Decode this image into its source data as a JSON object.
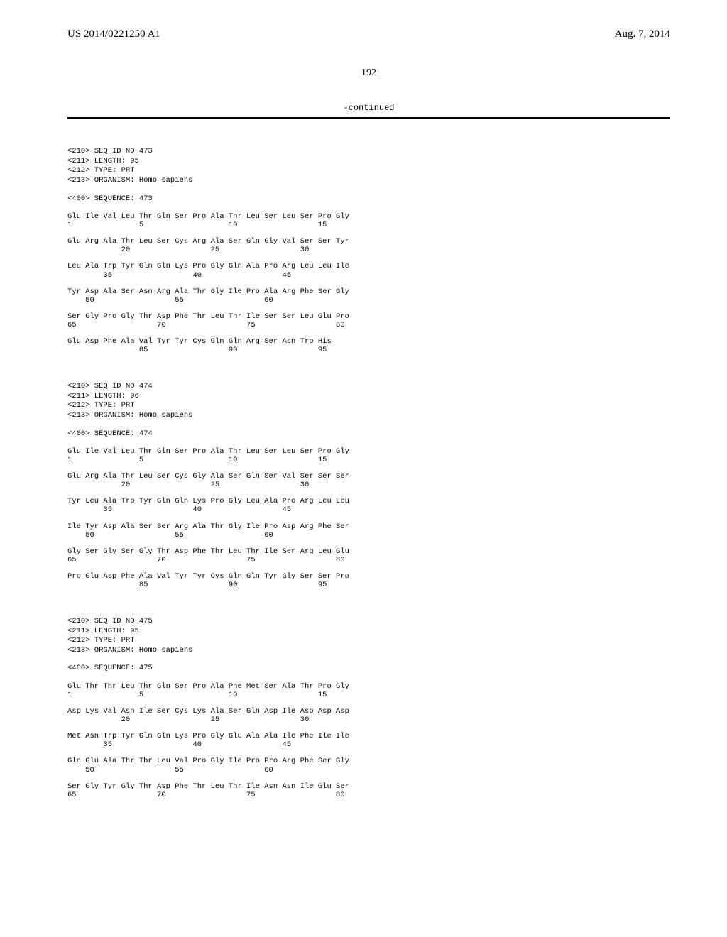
{
  "header": {
    "left": "US 2014/0221250 A1",
    "right": "Aug. 7, 2014"
  },
  "page_number": "192",
  "continued": "-continued",
  "sequences": [
    {
      "meta": [
        "<210> SEQ ID NO 473",
        "<211> LENGTH: 95",
        "<212> TYPE: PRT",
        "<213> ORGANISM: Homo sapiens"
      ],
      "seq_label": "<400> SEQUENCE: 473",
      "rows": [
        {
          "aa": "Glu Ile Val Leu Thr Gln Ser Pro Ala Thr Leu Ser Leu Ser Pro Gly",
          "num": "1               5                   10                  15"
        },
        {
          "aa": "Glu Arg Ala Thr Leu Ser Cys Arg Ala Ser Gln Gly Val Ser Ser Tyr",
          "num": "            20                  25                  30"
        },
        {
          "aa": "Leu Ala Trp Tyr Gln Gln Lys Pro Gly Gln Ala Pro Arg Leu Leu Ile",
          "num": "        35                  40                  45"
        },
        {
          "aa": "Tyr Asp Ala Ser Asn Arg Ala Thr Gly Ile Pro Ala Arg Phe Ser Gly",
          "num": "    50                  55                  60"
        },
        {
          "aa": "Ser Gly Pro Gly Thr Asp Phe Thr Leu Thr Ile Ser Ser Leu Glu Pro",
          "num": "65                  70                  75                  80"
        },
        {
          "aa": "Glu Asp Phe Ala Val Tyr Tyr Cys Gln Gln Arg Ser Asn Trp His",
          "num": "                85                  90                  95"
        }
      ]
    },
    {
      "meta": [
        "<210> SEQ ID NO 474",
        "<211> LENGTH: 96",
        "<212> TYPE: PRT",
        "<213> ORGANISM: Homo sapiens"
      ],
      "seq_label": "<400> SEQUENCE: 474",
      "rows": [
        {
          "aa": "Glu Ile Val Leu Thr Gln Ser Pro Ala Thr Leu Ser Leu Ser Pro Gly",
          "num": "1               5                   10                  15"
        },
        {
          "aa": "Glu Arg Ala Thr Leu Ser Cys Gly Ala Ser Gln Ser Val Ser Ser Ser",
          "num": "            20                  25                  30"
        },
        {
          "aa": "Tyr Leu Ala Trp Tyr Gln Gln Lys Pro Gly Leu Ala Pro Arg Leu Leu",
          "num": "        35                  40                  45"
        },
        {
          "aa": "Ile Tyr Asp Ala Ser Ser Arg Ala Thr Gly Ile Pro Asp Arg Phe Ser",
          "num": "    50                  55                  60"
        },
        {
          "aa": "Gly Ser Gly Ser Gly Thr Asp Phe Thr Leu Thr Ile Ser Arg Leu Glu",
          "num": "65                  70                  75                  80"
        },
        {
          "aa": "Pro Glu Asp Phe Ala Val Tyr Tyr Cys Gln Gln Tyr Gly Ser Ser Pro",
          "num": "                85                  90                  95"
        }
      ]
    },
    {
      "meta": [
        "<210> SEQ ID NO 475",
        "<211> LENGTH: 95",
        "<212> TYPE: PRT",
        "<213> ORGANISM: Homo sapiens"
      ],
      "seq_label": "<400> SEQUENCE: 475",
      "rows": [
        {
          "aa": "Glu Thr Thr Leu Thr Gln Ser Pro Ala Phe Met Ser Ala Thr Pro Gly",
          "num": "1               5                   10                  15"
        },
        {
          "aa": "Asp Lys Val Asn Ile Ser Cys Lys Ala Ser Gln Asp Ile Asp Asp Asp",
          "num": "            20                  25                  30"
        },
        {
          "aa": "Met Asn Trp Tyr Gln Gln Lys Pro Gly Glu Ala Ala Ile Phe Ile Ile",
          "num": "        35                  40                  45"
        },
        {
          "aa": "Gln Glu Ala Thr Thr Leu Val Pro Gly Ile Pro Pro Arg Phe Ser Gly",
          "num": "    50                  55                  60"
        },
        {
          "aa": "Ser Gly Tyr Gly Thr Asp Phe Thr Leu Thr Ile Asn Asn Ile Glu Ser",
          "num": "65                  70                  75                  80"
        }
      ]
    }
  ]
}
